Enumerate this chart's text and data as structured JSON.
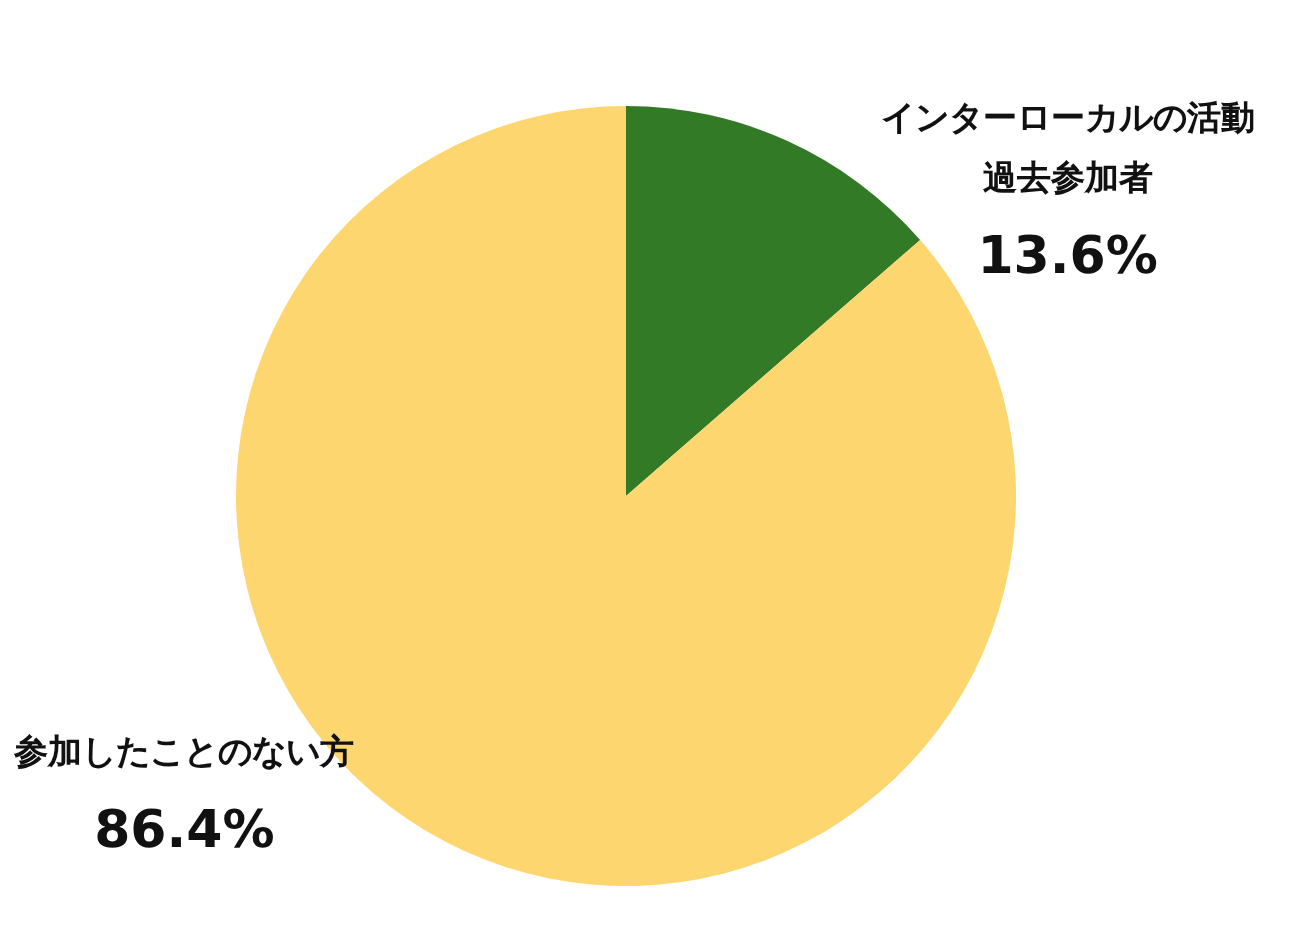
{
  "chart_data": {
    "type": "pie",
    "categories": [
      "インターローカルの活動過去参加者",
      "参加したことのない方"
    ],
    "values": [
      13.6,
      86.4
    ],
    "colors": [
      "#337a27",
      "#fed670"
    ],
    "value_labels": [
      "13.6%",
      "86.4%"
    ]
  }
}
